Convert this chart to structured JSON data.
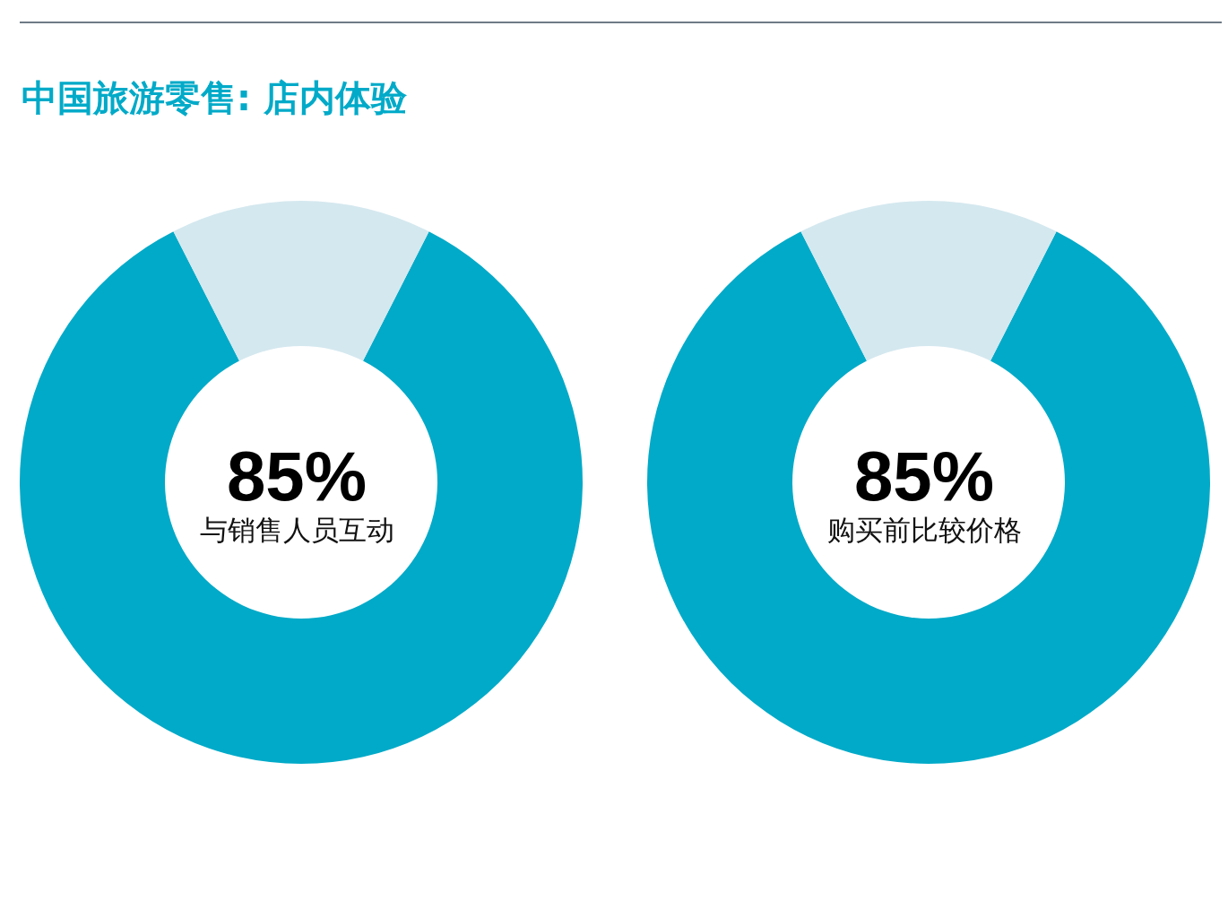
{
  "chart_data": [
    {
      "type": "donut",
      "title": "中国旅游零售: 店内体验",
      "categories": [
        "与销售人员互动",
        null
      ],
      "values": [
        85,
        15
      ],
      "colors": [
        "#00aac8",
        "#d4e8ef"
      ],
      "value_labels": [
        "85%",
        null
      ]
    },
    {
      "type": "donut",
      "categories": [
        "购买前比较价格",
        null
      ],
      "values": [
        85,
        15
      ],
      "colors": [
        "#00aac8",
        "#d4e8ef"
      ],
      "value_labels": [
        "85%",
        null
      ]
    }
  ]
}
